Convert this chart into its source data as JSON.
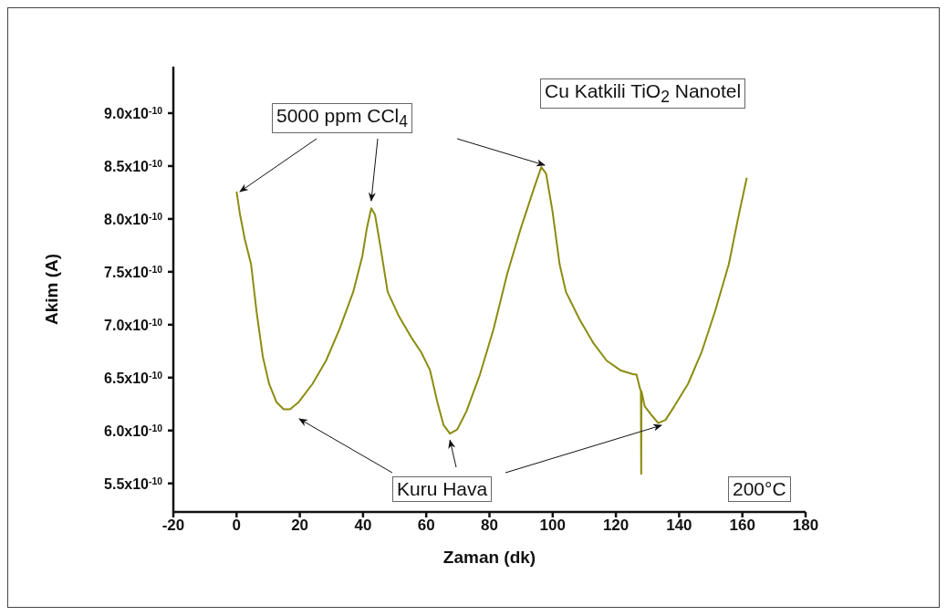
{
  "chart_data": {
    "type": "line",
    "xlabel": "Zaman (dk)",
    "ylabel": "Akim (A)",
    "annotations": [
      {
        "text": "5000 ppm CCl$_{4}$",
        "x": 42.6,
        "y": 8.1e-10
      },
      {
        "text": "Kuru Hava",
        "x": 67.5,
        "y": 5.97e-10
      },
      "Cu Katkili TiO$_{2}$ Nanotel",
      "200°C"
    ],
    "xlim": [
      -20,
      180
    ],
    "xticks": [
      -20,
      0,
      20,
      40,
      60,
      80,
      100,
      120,
      140,
      160,
      180
    ],
    "ylim": [
      5.23e-10,
      9.44e-10
    ],
    "yticks": [
      {
        "value": 5.5e-10,
        "label": "5.5x10$^{-10}$"
      },
      {
        "value": 6e-10,
        "label": "6.0x10$^{-10}$"
      },
      {
        "value": 6.5e-10,
        "label": "6.5x10$^{-10}$"
      },
      {
        "value": 7e-10,
        "label": "7.0x10$^{-10}$"
      },
      {
        "value": 7.5e-10,
        "label": "7.5x10$^{-10}$"
      },
      {
        "value": 8e-10,
        "label": "8.0x10$^{-10}$"
      },
      {
        "value": 8.5e-10,
        "label": "8.5x10$^{-10}$"
      },
      {
        "value": 9e-10,
        "label": "9.0x10$^{-10}$"
      }
    ],
    "grid": false,
    "legend": false,
    "marker": "none",
    "line_style": "solid",
    "series": [
      {
        "color": "#8c8c10",
        "x": [
          0,
          1.1,
          2.6,
          4.6,
          6.3,
          8.3,
          10.3,
          12.6,
          14.9,
          16.9,
          19.7,
          24,
          28.3,
          32.6,
          36.9,
          39.8,
          41.2,
          42.6,
          43.8,
          45.5,
          47.8,
          51.2,
          55.5,
          58.4,
          61.2,
          63.5,
          65.5,
          67.5,
          69.8,
          72.7,
          77,
          81.3,
          85.6,
          89.9,
          94.2,
          96.4,
          97.9,
          99.9,
          102.2,
          104.2,
          108.5,
          112.8,
          117.1,
          121.4,
          125.6,
          126.5,
          127.6,
          127.9,
          128,
          128.1,
          129.1,
          131.4,
          133.4,
          135.7,
          138.5,
          142.8,
          147.1,
          151.4,
          155.7,
          158.6,
          161.4
        ],
        "values": [
          8.26e-10,
          8.04e-10,
          7.81e-10,
          7.57e-10,
          7.13e-10,
          6.7e-10,
          6.44e-10,
          6.27e-10,
          6.2e-10,
          6.2e-10,
          6.27e-10,
          6.44e-10,
          6.66e-10,
          6.96e-10,
          7.31e-10,
          7.65e-10,
          7.91e-10,
          8.1e-10,
          8.04e-10,
          7.74e-10,
          7.31e-10,
          7.09e-10,
          6.87e-10,
          6.74e-10,
          6.57e-10,
          6.27e-10,
          6.05e-10,
          5.97e-10,
          6.01e-10,
          6.18e-10,
          6.53e-10,
          6.96e-10,
          7.48e-10,
          7.91e-10,
          8.3e-10,
          8.49e-10,
          8.43e-10,
          8.08e-10,
          7.57e-10,
          7.31e-10,
          7.05e-10,
          6.83e-10,
          6.66e-10,
          6.57e-10,
          6.53e-10,
          6.53e-10,
          6.4e-10,
          6.37e-10,
          5.59e-10,
          6.37e-10,
          6.23e-10,
          6.14e-10,
          6.07e-10,
          6.1e-10,
          6.23e-10,
          6.44e-10,
          6.74e-10,
          7.13e-10,
          7.57e-10,
          8e-10,
          8.39e-10
        ]
      }
    ]
  }
}
